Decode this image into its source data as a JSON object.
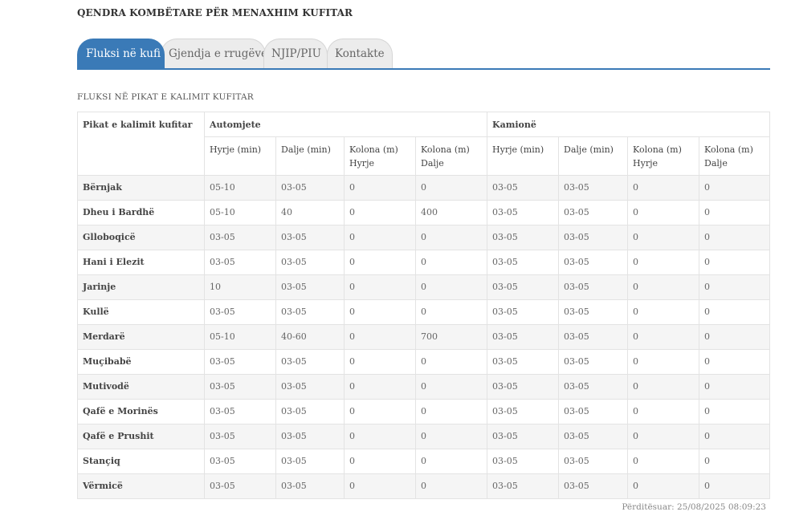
{
  "site_title": "QENDRA KOMBËTARE PËR MENAXHIM KUFITAR",
  "tabs": [
    {
      "label": "Fluksi në kufi",
      "active": true
    },
    {
      "label": "Gjendja e rrugëve",
      "active": false
    },
    {
      "label": "NJIP/PIU",
      "active": false
    },
    {
      "label": "Kontakte",
      "active": false
    }
  ],
  "section_title": "FLUKSI NË PIKAT E KALIMIT KUFITAR",
  "table": {
    "first_header": "Pikat e kalimit kufitar",
    "group_headers": [
      "Automjete",
      "Kamionë"
    ],
    "sub_headers": [
      "Hyrje (min)",
      "Dalje (min)",
      "Kolona (m) Hyrje",
      "Kolona (m) Dalje",
      "Hyrje (min)",
      "Dalje (min)",
      "Kolona (m) Hyrje",
      "Kolona (m) Dalje"
    ],
    "rows": [
      [
        "Bërnjak",
        "05-10",
        "03-05",
        "0",
        "0",
        "03-05",
        "03-05",
        "0",
        "0"
      ],
      [
        "Dheu i Bardhë",
        "05-10",
        "40",
        "0",
        "400",
        "03-05",
        "03-05",
        "0",
        "0"
      ],
      [
        "Glloboqicë",
        "03-05",
        "03-05",
        "0",
        "0",
        "03-05",
        "03-05",
        "0",
        "0"
      ],
      [
        "Hani i Elezit",
        "03-05",
        "03-05",
        "0",
        "0",
        "03-05",
        "03-05",
        "0",
        "0"
      ],
      [
        "Jarinje",
        "10",
        "03-05",
        "0",
        "0",
        "03-05",
        "03-05",
        "0",
        "0"
      ],
      [
        "Kullë",
        "03-05",
        "03-05",
        "0",
        "0",
        "03-05",
        "03-05",
        "0",
        "0"
      ],
      [
        "Merdarë",
        "05-10",
        "40-60",
        "0",
        "700",
        "03-05",
        "03-05",
        "0",
        "0"
      ],
      [
        "Muçibabë",
        "03-05",
        "03-05",
        "0",
        "0",
        "03-05",
        "03-05",
        "0",
        "0"
      ],
      [
        "Mutivodë",
        "03-05",
        "03-05",
        "0",
        "0",
        "03-05",
        "03-05",
        "0",
        "0"
      ],
      [
        "Qafë e Morinës",
        "03-05",
        "03-05",
        "0",
        "0",
        "03-05",
        "03-05",
        "0",
        "0"
      ],
      [
        "Qafë e Prushit",
        "03-05",
        "03-05",
        "0",
        "0",
        "03-05",
        "03-05",
        "0",
        "0"
      ],
      [
        "Stançiq",
        "03-05",
        "03-05",
        "0",
        "0",
        "03-05",
        "03-05",
        "0",
        "0"
      ],
      [
        "Vërmicë",
        "03-05",
        "03-05",
        "0",
        "0",
        "03-05",
        "03-05",
        "0",
        "0"
      ]
    ]
  },
  "updated": "Përditësuar: 25/08/2025 08:09:23",
  "colors": {
    "accent": "#3a7ab7",
    "tab_inactive": "#ececec",
    "row_stripe": "#f5f5f5"
  }
}
